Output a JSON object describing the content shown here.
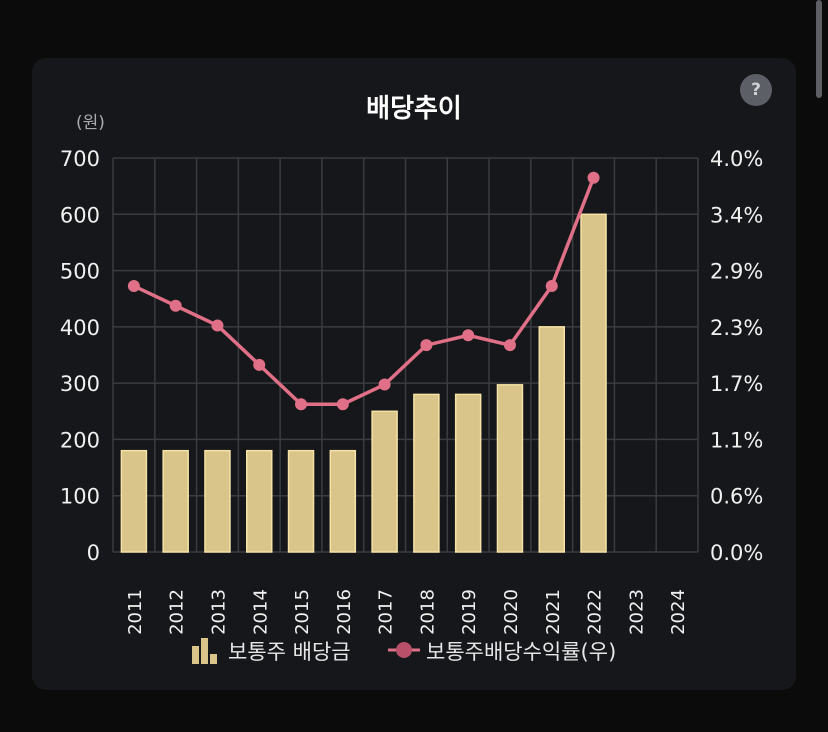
{
  "header": {
    "title": "배당추이",
    "unit": "(원)",
    "help_label": "?"
  },
  "legend": {
    "bar_label": "보통주 배당금",
    "line_label": "보통주배당수익률(우)"
  },
  "colors": {
    "bar": "#d9c58a",
    "bar_edge": "#f4e2a6",
    "line": "#e07088",
    "grid": "#3a3c41",
    "axis_text": "#f0f0f0"
  },
  "chart_data": {
    "type": "bar",
    "categories": [
      "2011",
      "2012",
      "2013",
      "2014",
      "2015",
      "2016",
      "2017",
      "2018",
      "2019",
      "2020",
      "2021",
      "2022",
      "2023",
      "2024"
    ],
    "series": [
      {
        "name": "보통주 배당금",
        "type": "bar",
        "axis": "left",
        "values": [
          180,
          180,
          180,
          180,
          180,
          180,
          250,
          280,
          280,
          297,
          400,
          600,
          null,
          null
        ]
      },
      {
        "name": "보통주배당수익률(우)",
        "type": "line",
        "axis": "right",
        "values": [
          2.7,
          2.5,
          2.3,
          1.9,
          1.5,
          1.5,
          1.7,
          2.1,
          2.2,
          2.1,
          2.7,
          3.8,
          null,
          null
        ]
      }
    ],
    "y_left": {
      "ylim": [
        0,
        700
      ],
      "ticks": [
        0,
        100,
        200,
        300,
        400,
        500,
        600,
        700
      ],
      "tick_labels": [
        "0",
        "100",
        "200",
        "300",
        "400",
        "500",
        "600",
        "700"
      ]
    },
    "y_right": {
      "ylim": [
        0,
        4.0
      ],
      "tick_labels": [
        "0.0%",
        "0.6%",
        "1.1%",
        "1.7%",
        "2.3%",
        "2.9%",
        "3.4%",
        "4.0%"
      ]
    },
    "grid": true,
    "legend_position": "bottom"
  }
}
